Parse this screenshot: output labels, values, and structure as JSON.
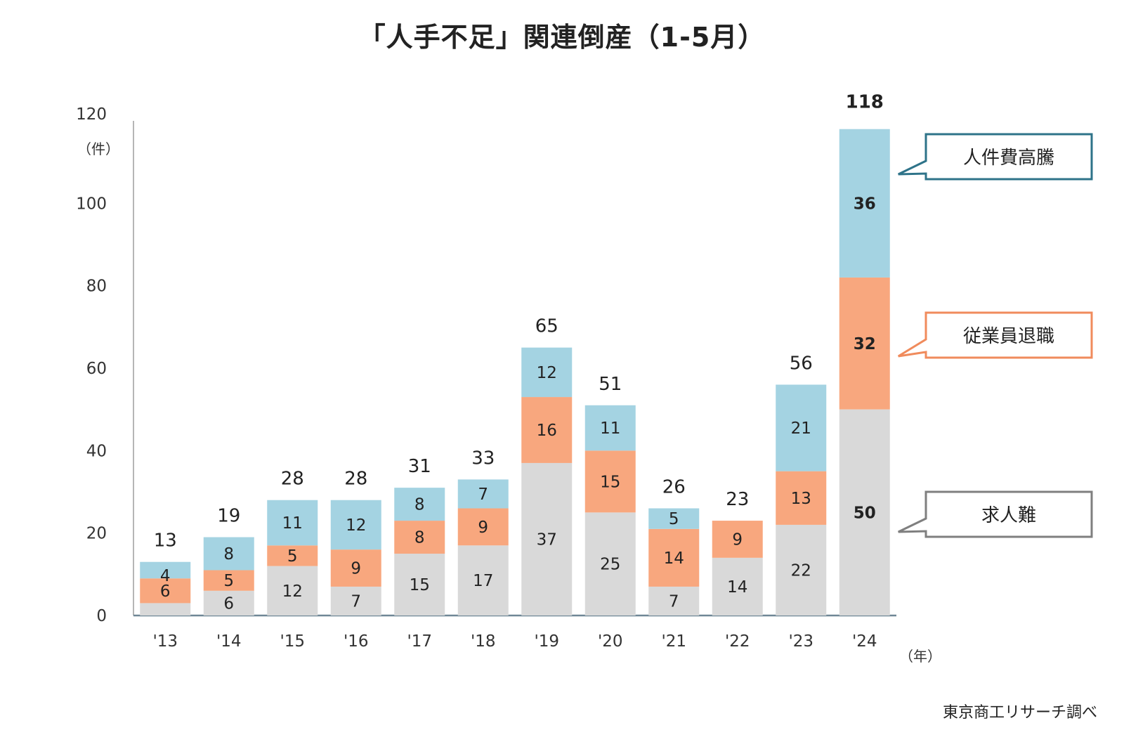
{
  "chart_data": {
    "type": "bar",
    "stacked": true,
    "title": "「人手不足」関連倒産（1-5月）",
    "y_unit": "（件）",
    "x_unit": "（年）",
    "ylim": [
      0,
      120
    ],
    "yticks": [
      0,
      20,
      40,
      60,
      80,
      100,
      120
    ],
    "categories": [
      "'13",
      "'14",
      "'15",
      "'16",
      "'17",
      "'18",
      "'19",
      "'20",
      "'21",
      "'22",
      "'23",
      "'24"
    ],
    "series": [
      {
        "name": "求人難",
        "color": "#d9d9d9",
        "values": [
          3,
          6,
          12,
          7,
          15,
          17,
          37,
          25,
          7,
          14,
          22,
          50
        ]
      },
      {
        "name": "従業員退職",
        "color": "#f8a77e",
        "values": [
          6,
          5,
          5,
          9,
          8,
          9,
          16,
          15,
          14,
          9,
          13,
          32
        ]
      },
      {
        "name": "人件費高騰",
        "color": "#a4d3e2",
        "values": [
          4,
          8,
          11,
          12,
          8,
          7,
          12,
          11,
          5,
          0,
          21,
          36
        ]
      }
    ],
    "segment_labels": [
      [
        "",
        "6",
        "12",
        "7",
        "15",
        "17",
        "37",
        "25",
        "7",
        "14",
        "22",
        "50"
      ],
      [
        "6",
        "5",
        "5",
        "9",
        "8",
        "9",
        "16",
        "15",
        "14",
        "9",
        "13",
        "32"
      ],
      [
        "4",
        "8",
        "11",
        "12",
        "8",
        "7",
        "12",
        "11",
        "5",
        "",
        "21",
        "36"
      ]
    ],
    "totals": [
      13,
      19,
      28,
      28,
      31,
      33,
      65,
      51,
      26,
      23,
      56,
      118
    ],
    "legend": "callouts-right"
  },
  "source": "東京商工リサーチ調べ",
  "colors": {
    "kyujinnan_border": "#7f7f7f",
    "taishoku_border": "#f08b5c",
    "jinkenhi_border": "#2e7389",
    "axis": "#9e9e9e"
  }
}
